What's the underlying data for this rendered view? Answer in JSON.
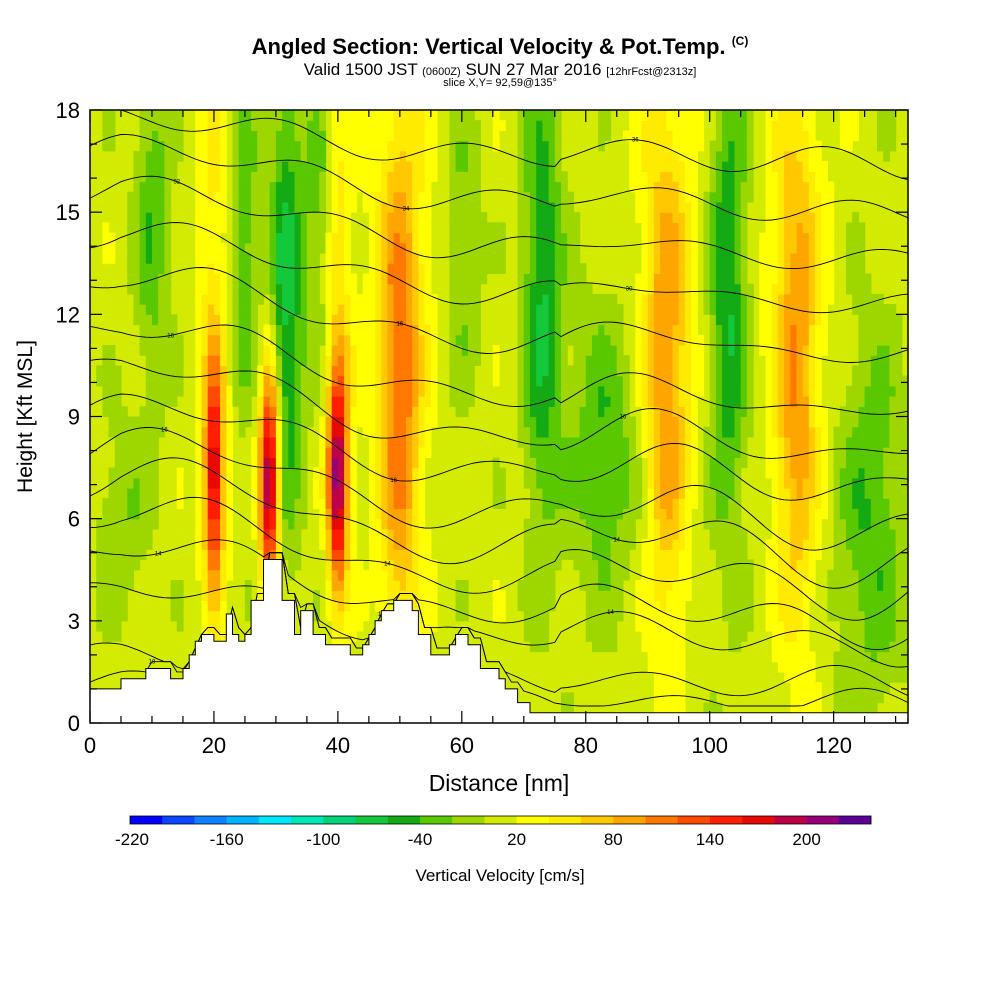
{
  "header": {
    "title": "Angled Section: Vertical Velocity & Pot.Temp.",
    "title_suffix": "(C)",
    "valid_prefix": "Valid 1500 JST",
    "valid_utc": "(0600Z)",
    "valid_date": "SUN 27 Mar 2016",
    "forecast": "[12hrFcst@2313z]",
    "slice": "slice X,Y= 92,59@135°"
  },
  "chart_data": {
    "type": "heatmap",
    "xlabel": "Distance [nm]",
    "ylabel": "Height [Kft MSL]",
    "xlim": [
      0,
      132
    ],
    "ylim": [
      0,
      18
    ],
    "x_ticks": [
      "0",
      "20",
      "40",
      "60",
      "80",
      "100",
      "120"
    ],
    "y_ticks": [
      "0",
      "3",
      "6",
      "9",
      "12",
      "15",
      "18"
    ],
    "colorbar": {
      "label": "Vertical Velocity [cm/s]",
      "tick_labels": [
        "-220",
        "-160",
        "-100",
        "-40",
        "20",
        "80",
        "140",
        "200"
      ],
      "levels": [
        -220,
        -200,
        -180,
        -160,
        -140,
        -120,
        -100,
        -80,
        -60,
        -40,
        -20,
        0,
        20,
        40,
        60,
        80,
        100,
        120,
        140,
        160,
        180,
        200,
        220
      ],
      "colors": [
        "#0000ff",
        "#0a46ff",
        "#0f80ff",
        "#00b4ff",
        "#00e6ff",
        "#00e6b4",
        "#00d278",
        "#14c83c",
        "#14aa14",
        "#5ac800",
        "#9ed600",
        "#d2eb00",
        "#ffff00",
        "#ffeb00",
        "#ffc800",
        "#ffa500",
        "#ff7800",
        "#ff4b00",
        "#ff1e00",
        "#e60a00",
        "#be0046",
        "#960078",
        "#5a0096"
      ]
    },
    "updrafts": [
      {
        "x": 20,
        "peak_cm_s": 160
      },
      {
        "x": 29,
        "peak_cm_s": 210
      },
      {
        "x": 40,
        "peak_cm_s": 190
      },
      {
        "x": 50,
        "peak_cm_s": 80
      },
      {
        "x": 93,
        "peak_cm_s": 60
      },
      {
        "x": 114,
        "peak_cm_s": 60
      }
    ],
    "downdrafts": [
      {
        "x": 31,
        "min_cm_s": -80
      },
      {
        "x": 73,
        "min_cm_s": -60
      },
      {
        "x": 103,
        "min_cm_s": -60
      }
    ],
    "terrain": [
      [
        0,
        1
      ],
      [
        5,
        1
      ],
      [
        5,
        1.3
      ],
      [
        9,
        1.3
      ],
      [
        9,
        1.6
      ],
      [
        13,
        1.6
      ],
      [
        13,
        1.3
      ],
      [
        15,
        1.3
      ],
      [
        15,
        1.6
      ],
      [
        16,
        1.6
      ],
      [
        16,
        2
      ],
      [
        17,
        2
      ],
      [
        17,
        2.4
      ],
      [
        18,
        2.4
      ],
      [
        18,
        2.6
      ],
      [
        20,
        2.6
      ],
      [
        20,
        2.4
      ],
      [
        22,
        2.4
      ],
      [
        22,
        3.2
      ],
      [
        23,
        3.2
      ],
      [
        23,
        2.6
      ],
      [
        24,
        2.6
      ],
      [
        24,
        2.4
      ],
      [
        25,
        2.4
      ],
      [
        25,
        2.6
      ],
      [
        26,
        2.6
      ],
      [
        26,
        3.6
      ],
      [
        28,
        3.6
      ],
      [
        28,
        4.8
      ],
      [
        31,
        4.8
      ],
      [
        31,
        3.6
      ],
      [
        33,
        3.6
      ],
      [
        33,
        2.6
      ],
      [
        34,
        2.6
      ],
      [
        34,
        3.3
      ],
      [
        36,
        3.3
      ],
      [
        36,
        2.6
      ],
      [
        38,
        2.6
      ],
      [
        38,
        2.3
      ],
      [
        42,
        2.3
      ],
      [
        42,
        2
      ],
      [
        44,
        2
      ],
      [
        44,
        2.3
      ],
      [
        45,
        2.3
      ],
      [
        45,
        2.6
      ],
      [
        46,
        2.6
      ],
      [
        46,
        3
      ],
      [
        47,
        3
      ],
      [
        47,
        3.3
      ],
      [
        49,
        3.3
      ],
      [
        49,
        3.6
      ],
      [
        52,
        3.6
      ],
      [
        52,
        3.3
      ],
      [
        53,
        3.3
      ],
      [
        53,
        2.6
      ],
      [
        55,
        2.6
      ],
      [
        55,
        2
      ],
      [
        58,
        2
      ],
      [
        58,
        2.3
      ],
      [
        59,
        2.3
      ],
      [
        59,
        2.6
      ],
      [
        61,
        2.6
      ],
      [
        61,
        2.3
      ],
      [
        63,
        2.3
      ],
      [
        63,
        1.6
      ],
      [
        66,
        1.6
      ],
      [
        66,
        1.3
      ],
      [
        67,
        1.3
      ],
      [
        67,
        1
      ],
      [
        69,
        1
      ],
      [
        69,
        0.6
      ],
      [
        71,
        0.6
      ],
      [
        71,
        0.3
      ],
      [
        132,
        0.3
      ]
    ],
    "theta_contours": [
      {
        "label": "18",
        "base": 1.2,
        "low": 0.6,
        "drop": 0
      },
      {
        "label": "16",
        "base": 2.0,
        "low": 1.2,
        "drop": 0
      },
      {
        "label": "14",
        "base": 3.8,
        "low": 2.5,
        "drop": 0.4
      },
      {
        "label": "14",
        "base": 5.0,
        "low": 3.2,
        "drop": 0.5
      },
      {
        "label": "14",
        "base": 6.0,
        "low": 4.2,
        "drop": 0.6
      },
      {
        "label": "14",
        "base": 7.0,
        "low": 5.2,
        "drop": 0.7
      },
      {
        "label": "16",
        "base": 8.0,
        "low": 6.1,
        "drop": 0.6
      },
      {
        "label": "16",
        "base": 9.1,
        "low": 7.3,
        "drop": 0.5
      },
      {
        "label": "16",
        "base": 10.3,
        "low": 8.3,
        "drop": 0.5
      },
      {
        "label": "16",
        "base": 11.5,
        "low": 9.5,
        "drop": 0.4
      },
      {
        "label": "16",
        "base": 13.0,
        "low": 11.1,
        "drop": 0.4
      },
      {
        "label": "30",
        "base": 14.3,
        "low": 12.5,
        "drop": 0.3
      },
      {
        "label": "32",
        "base": 15.6,
        "low": 13.8,
        "drop": 0.3
      },
      {
        "label": "34",
        "base": 16.8,
        "low": 15.2,
        "drop": 0.3
      },
      {
        "label": "36",
        "base": 17.7,
        "low": 16.6,
        "drop": 0.2
      }
    ]
  }
}
